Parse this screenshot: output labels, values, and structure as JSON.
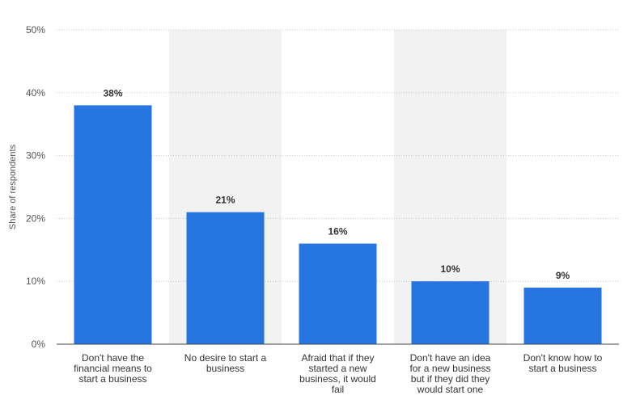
{
  "chart_data": {
    "type": "bar",
    "title": "",
    "xlabel": "",
    "ylabel": "Share of respondents",
    "categories": [
      "Don't have the financial means to start a business",
      "No desire to start a business",
      "Afraid that if they started a new business, it would fail",
      "Don't have an idea for a new business but if they did they would start one",
      "Don't know how to start a business"
    ],
    "category_lines": [
      [
        "Don't have the",
        "financial means to",
        "start a business"
      ],
      [
        "No desire to start a",
        "business"
      ],
      [
        "Afraid that if they",
        "started a new",
        "business, it would",
        "fail"
      ],
      [
        "Don't have an idea",
        "for a new business",
        "but if they did they",
        "would start one"
      ],
      [
        "Don't know how to",
        "start a business"
      ]
    ],
    "values": [
      38,
      21,
      16,
      10,
      9
    ],
    "data_labels": [
      "38%",
      "21%",
      "16%",
      "10%",
      "9%"
    ],
    "ylim": [
      0,
      50
    ],
    "yticks": [
      0,
      10,
      20,
      30,
      40,
      50
    ],
    "ytick_labels": [
      "0%",
      "10%",
      "20%",
      "30%",
      "40%",
      "50%"
    ],
    "grid": true,
    "legend": "none",
    "colors": {
      "bar": "#2675e0",
      "band": "#f2f2f2",
      "grid": "#c8c8c8",
      "axis": "#444444",
      "tick_text": "#555555",
      "label_text": "#333333"
    }
  }
}
